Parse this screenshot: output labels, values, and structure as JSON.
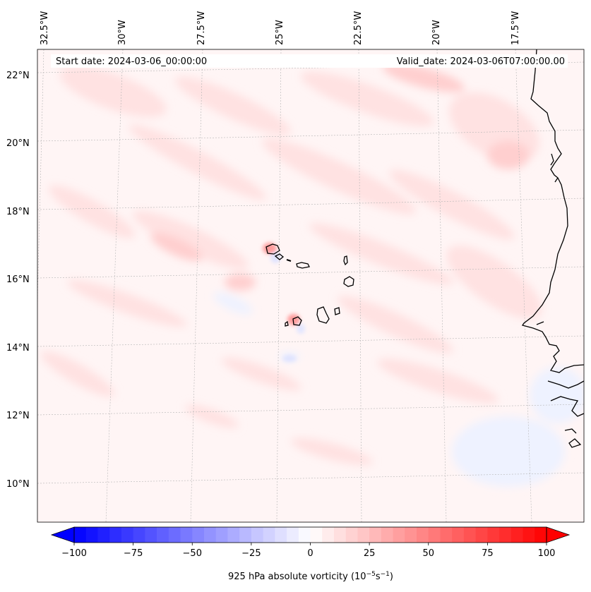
{
  "header": {
    "start_date": "Start date: 2024-03-06_00:00:00",
    "valid_date": "Valid_date: 2024-03-06T07:00:00.00"
  },
  "map": {
    "lon_labels": [
      "32.5°W",
      "30°W",
      "27.5°W",
      "25°W",
      "22.5°W",
      "20°W",
      "17.5°W"
    ],
    "lat_labels": [
      "22°N",
      "20°N",
      "18°N",
      "16°N",
      "14°N",
      "12°N",
      "10°N"
    ],
    "field": "925 hPa absolute vorticity",
    "coast_color": "#000000",
    "grid": true
  },
  "colorbar": {
    "label_html": "925 hPa absolute vorticity (10<tspan baseline-shift=\"super\" font-size=\"9\">−5</tspan>s<tspan baseline-shift=\"super\" font-size=\"9\">−1</tspan>)",
    "ticks": [
      "−100",
      "−75",
      "−50",
      "−25",
      "0",
      "25",
      "50",
      "75",
      "100"
    ],
    "vmin": -100,
    "vmax": 100,
    "min_color": "#0000ff",
    "mid_color": "#ffffff",
    "max_color": "#ff0000",
    "extend": "both"
  }
}
